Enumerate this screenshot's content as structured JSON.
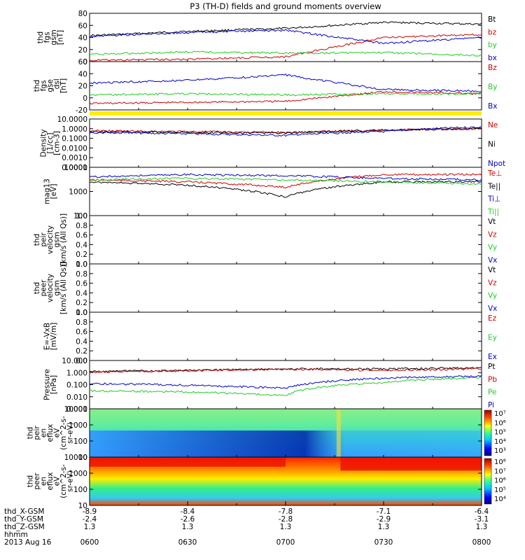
{
  "title": "P3 (TH-D) fields and ground moments overview",
  "colors": {
    "black": "#000000",
    "red": "#cc0000",
    "green": "#22cc22",
    "blue": "#0000cc",
    "yellow": "#ffee00"
  },
  "x_axis": {
    "ticks": [
      "0600",
      "0630",
      "0700",
      "0730",
      "0800"
    ],
    "rows": [
      {
        "label": "thd_X-GSM",
        "values": [
          "-8.9",
          "-8.4",
          "-7.8",
          "-7.1",
          "-6.4"
        ]
      },
      {
        "label": "thd_Y-GSM",
        "values": [
          "-2.4",
          "-2.6",
          "-2.8",
          "-2.9",
          "-3.1"
        ]
      },
      {
        "label": "thd_Z-GSM",
        "values": [
          "1.3",
          "1.3",
          "1.3",
          "1.3",
          "1.3"
        ]
      },
      {
        "label": "hhmm",
        "values": []
      }
    ],
    "date": "2013 Aug 16"
  },
  "panels": [
    {
      "ylabel": [
        "thd",
        "fgs",
        "gsm",
        "[nT]"
      ],
      "ticks": [
        "80",
        "60",
        "40",
        "20",
        "0"
      ],
      "legend": [
        {
          "text": "Bt",
          "color": "black"
        },
        {
          "text": "bz",
          "color": "red"
        },
        {
          "text": "by",
          "color": "green"
        },
        {
          "text": "bx",
          "color": "blue"
        }
      ]
    },
    {
      "ylabel": [
        "thd",
        "fgs",
        "gse",
        "_dsl",
        "[nT]"
      ],
      "ticks": [
        "60",
        "40",
        "20",
        "0",
        "-20"
      ],
      "legend": [
        {
          "text": "Bz",
          "color": "red"
        },
        {
          "text": "By",
          "color": "green"
        },
        {
          "text": "Bx",
          "color": "blue"
        }
      ]
    },
    {
      "ylabel": [
        "Density",
        "[1/cc]",
        "[cm-3]"
      ],
      "ticks": [
        "10.0000",
        "1.0000",
        "0.1000",
        "0.0100",
        "0.0010",
        "0.0001"
      ],
      "legend": [
        {
          "text": "Ne",
          "color": "red"
        },
        {
          "text": "Ni",
          "color": "black"
        },
        {
          "text": "Npot",
          "color": "blue"
        }
      ]
    },
    {
      "ylabel": [
        "mag13",
        "[eV]"
      ],
      "ticks": [
        "10000",
        "1000",
        "100"
      ],
      "legend": [
        {
          "text": "Te⊥",
          "color": "red"
        },
        {
          "text": "Te||",
          "color": "black"
        },
        {
          "text": "Ti⊥",
          "color": "blue"
        },
        {
          "text": "Ti||",
          "color": "green"
        }
      ]
    },
    {
      "ylabel": [
        "thd",
        "peir",
        "velocity",
        "gsm",
        "[km/s (All Qs)]"
      ],
      "ticks": [
        "1.0",
        "0.8",
        "0.6",
        "0.4",
        "0.2",
        "0.0"
      ],
      "legend": [
        {
          "text": "Vt",
          "color": "black"
        },
        {
          "text": "Vz",
          "color": "red"
        },
        {
          "text": "Vy",
          "color": "green"
        },
        {
          "text": "Vx",
          "color": "blue"
        }
      ]
    },
    {
      "ylabel": [
        "thd",
        "peer",
        "velocity",
        "gsm",
        "[km/s (All Qs)]"
      ],
      "ticks": [
        "1.0",
        "0.8",
        "0.6",
        "0.4",
        "0.2",
        "0.0"
      ],
      "legend": [
        {
          "text": "Vt",
          "color": "black"
        },
        {
          "text": "Vz",
          "color": "red"
        },
        {
          "text": "Vy",
          "color": "green"
        },
        {
          "text": "Vx",
          "color": "blue"
        }
      ]
    },
    {
      "ylabel": [
        "E=-VxB",
        "[mV/m]"
      ],
      "ticks": [
        "1.0",
        "0.8",
        "0.6",
        "0.4",
        "0.2",
        "0.0"
      ],
      "legend": [
        {
          "text": "Ez",
          "color": "red"
        },
        {
          "text": "Ey",
          "color": "green"
        },
        {
          "text": "Ex",
          "color": "blue"
        }
      ]
    },
    {
      "ylabel": [
        "Pressure",
        "[nPa]"
      ],
      "ticks": [
        "10.000",
        "1.000",
        "0.100",
        "0.010",
        "0.001"
      ],
      "legend": [
        {
          "text": "Pt",
          "color": "black"
        },
        {
          "text": "Pb",
          "color": "red"
        },
        {
          "text": "Pe",
          "color": "green"
        },
        {
          "text": "Pi",
          "color": "blue"
        }
      ]
    },
    {
      "ylabel": [
        "thd",
        "peir",
        "en",
        "eflux",
        "eV",
        "(cm^2-s-",
        "sr-eV)"
      ],
      "ticks": [
        "10000",
        "1000",
        "100",
        "10"
      ],
      "colorbar": [
        "10⁷",
        "10⁶",
        "10⁵",
        "10⁴",
        "10³"
      ]
    },
    {
      "ylabel": [
        "thd",
        "peer",
        "en",
        "eflux",
        "eV",
        "(cm^2-s-",
        "sr-eV)"
      ],
      "ticks": [
        "10000",
        "1000",
        "100",
        "10"
      ],
      "colorbar": [
        "10⁸",
        "10⁷",
        "10⁶",
        "10⁵",
        "10⁴"
      ]
    }
  ],
  "chart_data": [
    {
      "type": "line",
      "title": "P3 (TH-D) fields and ground moments overview",
      "xlabel": "hhmm",
      "x": [
        "0600",
        "0630",
        "0700",
        "0730",
        "0800"
      ],
      "ylim": [
        0,
        80
      ],
      "series": [
        {
          "name": "Bt",
          "values": [
            43,
            50,
            55,
            65,
            62
          ]
        },
        {
          "name": "bz",
          "values": [
            2,
            4,
            8,
            40,
            45
          ]
        },
        {
          "name": "by",
          "values": [
            12,
            16,
            14,
            15,
            10
          ]
        },
        {
          "name": "bx",
          "values": [
            42,
            48,
            52,
            30,
            40
          ]
        }
      ]
    },
    {
      "type": "line",
      "x": [
        "0600",
        "0630",
        "0700",
        "0730",
        "0800"
      ],
      "ylim": [
        -30,
        60
      ],
      "series": [
        {
          "name": "Bz",
          "values": [
            -18,
            -16,
            -14,
            4,
            0
          ]
        },
        {
          "name": "By",
          "values": [
            -2,
            0,
            -2,
            0,
            0
          ]
        },
        {
          "name": "Bx",
          "values": [
            20,
            25,
            35,
            8,
            5
          ]
        }
      ]
    },
    {
      "type": "line",
      "x": [
        "0600",
        "0630",
        "0700",
        "0730",
        "0800"
      ],
      "ylim": [
        0.0001,
        10
      ],
      "yscale": "log",
      "series": [
        {
          "name": "Ne",
          "values": [
            0.6,
            0.5,
            0.4,
            0.7,
            1.0
          ]
        },
        {
          "name": "Ni",
          "values": [
            0.5,
            0.4,
            0.35,
            0.7,
            1.0
          ]
        },
        {
          "name": "Npot",
          "values": [
            0.4,
            0.3,
            0.2,
            0.5,
            1.5
          ]
        }
      ]
    },
    {
      "type": "line",
      "x": [
        "0600",
        "0630",
        "0700",
        "0730",
        "0800"
      ],
      "ylim": [
        100,
        10000
      ],
      "yscale": "log",
      "series": [
        {
          "name": "Te⊥",
          "values": [
            3000,
            2500,
            1500,
            5000,
            5000
          ]
        },
        {
          "name": "Te||",
          "values": [
            2500,
            1800,
            600,
            2500,
            2500
          ]
        },
        {
          "name": "Ti⊥",
          "values": [
            4000,
            5000,
            4500,
            3500,
            3000
          ]
        },
        {
          "name": "Ti||",
          "values": [
            3000,
            3500,
            3000,
            2500,
            2000
          ]
        }
      ]
    },
    {
      "type": "line",
      "x": [
        "0600",
        "0630",
        "0700",
        "0730",
        "0800"
      ],
      "ylim": [
        0,
        1
      ],
      "series": []
    },
    {
      "type": "line",
      "x": [
        "0600",
        "0630",
        "0700",
        "0730",
        "0800"
      ],
      "ylim": [
        0,
        1
      ],
      "series": []
    },
    {
      "type": "line",
      "x": [
        "0600",
        "0630",
        "0700",
        "0730",
        "0800"
      ],
      "ylim": [
        0,
        1
      ],
      "series": []
    },
    {
      "type": "line",
      "x": [
        "0600",
        "0630",
        "0700",
        "0730",
        "0800"
      ],
      "ylim": [
        0.001,
        10
      ],
      "yscale": "log",
      "series": [
        {
          "name": "Pt",
          "values": [
            1.2,
            1.5,
            2.0,
            2.0,
            2.5
          ]
        },
        {
          "name": "Pb",
          "values": [
            1.1,
            1.4,
            1.9,
            1.5,
            2.0
          ]
        },
        {
          "name": "Pe",
          "values": [
            0.03,
            0.025,
            0.012,
            0.15,
            0.4
          ]
        },
        {
          "name": "Pi",
          "values": [
            0.12,
            0.09,
            0.05,
            0.35,
            0.5
          ]
        }
      ]
    },
    {
      "type": "heatmap",
      "x": [
        "0600",
        "0630",
        "0700",
        "0730",
        "0800"
      ],
      "ylim": [
        10,
        10000
      ],
      "yscale": "log",
      "colorbar_range": [
        "10³",
        "10⁷"
      ]
    },
    {
      "type": "heatmap",
      "x": [
        "0600",
        "0630",
        "0700",
        "0730",
        "0800"
      ],
      "ylim": [
        10,
        10000
      ],
      "yscale": "log",
      "colorbar_range": [
        "10⁴",
        "10⁸"
      ]
    }
  ]
}
